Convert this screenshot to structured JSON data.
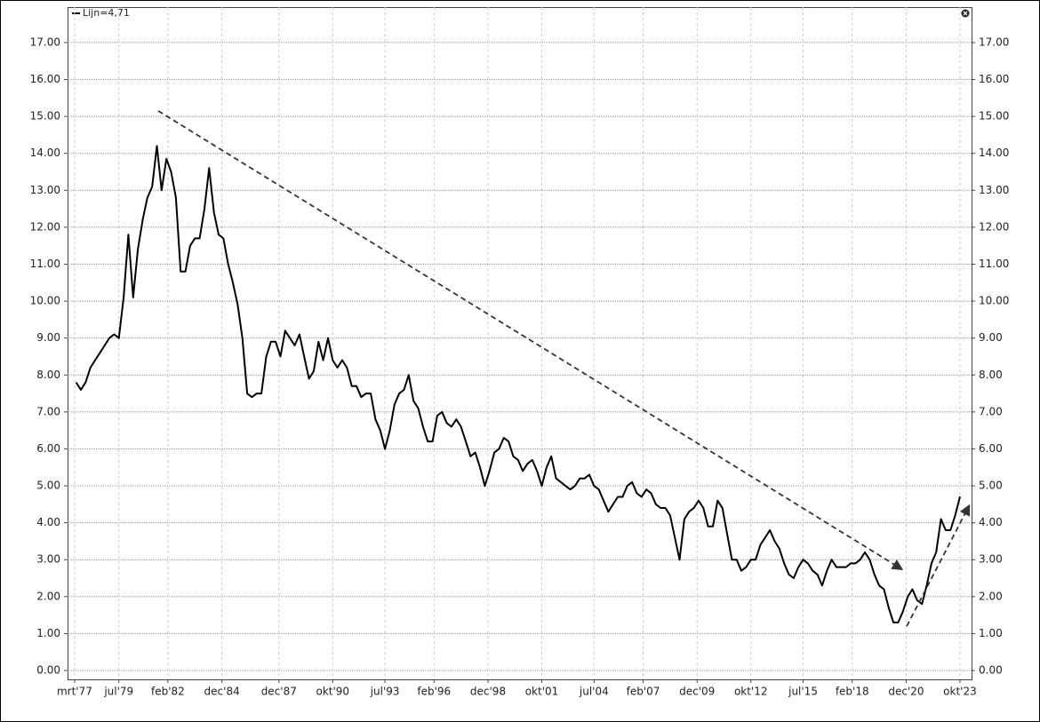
{
  "chart_data": {
    "type": "line",
    "x": [
      1977.25,
      1977.5,
      1977.75,
      1978,
      1978.25,
      1978.5,
      1978.75,
      1979,
      1979.25,
      1979.5,
      1979.75,
      1980,
      1980.25,
      1980.5,
      1980.75,
      1981,
      1981.25,
      1981.5,
      1981.75,
      1982,
      1982.25,
      1982.5,
      1982.75,
      1983,
      1983.25,
      1983.5,
      1983.75,
      1984,
      1984.25,
      1984.5,
      1984.75,
      1985,
      1985.25,
      1985.5,
      1985.75,
      1986,
      1986.25,
      1986.5,
      1986.75,
      1987,
      1987.25,
      1987.5,
      1987.75,
      1988,
      1988.25,
      1988.5,
      1988.75,
      1989,
      1989.25,
      1989.5,
      1989.75,
      1990,
      1990.25,
      1990.5,
      1990.75,
      1991,
      1991.25,
      1991.5,
      1991.75,
      1992,
      1992.25,
      1992.5,
      1992.75,
      1993,
      1993.25,
      1993.5,
      1993.75,
      1994,
      1994.25,
      1994.5,
      1994.75,
      1995,
      1995.25,
      1995.5,
      1995.75,
      1996,
      1996.25,
      1996.5,
      1996.75,
      1997,
      1997.25,
      1997.5,
      1997.75,
      1998,
      1998.25,
      1998.5,
      1998.75,
      1999,
      1999.25,
      1999.5,
      1999.75,
      2000,
      2000.25,
      2000.5,
      2000.75,
      2001,
      2001.25,
      2001.5,
      2001.75,
      2002,
      2002.25,
      2002.5,
      2002.75,
      2003,
      2003.25,
      2003.5,
      2003.75,
      2004,
      2004.25,
      2004.5,
      2004.75,
      2005,
      2005.25,
      2005.5,
      2005.75,
      2006,
      2006.25,
      2006.5,
      2006.75,
      2007,
      2007.25,
      2007.5,
      2007.75,
      2008,
      2008.25,
      2008.5,
      2008.75,
      2009,
      2009.25,
      2009.5,
      2009.75,
      2010,
      2010.25,
      2010.5,
      2010.75,
      2011,
      2011.25,
      2011.5,
      2011.75,
      2012,
      2012.25,
      2012.5,
      2012.75,
      2013,
      2013.25,
      2013.5,
      2013.75,
      2014,
      2014.25,
      2014.5,
      2014.75,
      2015,
      2015.25,
      2015.5,
      2015.75,
      2016,
      2016.25,
      2016.5,
      2016.75,
      2017,
      2017.25,
      2017.5,
      2017.75,
      2018,
      2018.25,
      2018.5,
      2018.75,
      2019,
      2019.25,
      2019.5,
      2019.75,
      2020,
      2020.25,
      2020.5,
      2020.75,
      2021,
      2021.25,
      2021.5,
      2021.75,
      2022,
      2022.25,
      2022.5,
      2022.75,
      2023,
      2023.25,
      2023.5,
      2023.75
    ],
    "series": [
      {
        "name": "Lijn=4,71",
        "color": "#000000",
        "values": [
          7.8,
          7.6,
          7.8,
          8.2,
          8.4,
          8.6,
          8.8,
          9.0,
          9.1,
          9.0,
          10.1,
          11.8,
          10.1,
          11.4,
          12.2,
          12.8,
          13.1,
          14.2,
          13.0,
          13.85,
          13.5,
          12.8,
          10.8,
          10.8,
          11.5,
          11.7,
          11.7,
          12.5,
          13.6,
          12.4,
          11.8,
          11.7,
          11.0,
          10.5,
          9.9,
          9.0,
          7.5,
          7.4,
          7.5,
          7.5,
          8.5,
          8.9,
          8.9,
          8.5,
          9.2,
          9.0,
          8.8,
          9.1,
          8.5,
          7.9,
          8.1,
          8.9,
          8.4,
          9.0,
          8.4,
          8.2,
          8.4,
          8.2,
          7.7,
          7.7,
          7.4,
          7.5,
          7.5,
          6.8,
          6.5,
          6.0,
          6.5,
          7.2,
          7.5,
          7.6,
          8.0,
          7.3,
          7.1,
          6.6,
          6.2,
          6.2,
          6.9,
          7.0,
          6.7,
          6.6,
          6.8,
          6.6,
          6.2,
          5.8,
          5.9,
          5.5,
          5.0,
          5.4,
          5.9,
          6.0,
          6.3,
          6.2,
          5.8,
          5.7,
          5.4,
          5.6,
          5.7,
          5.4,
          5.0,
          5.5,
          5.8,
          5.2,
          5.1,
          5.0,
          4.9,
          5.0,
          5.2,
          5.2,
          5.3,
          5.0,
          4.9,
          4.6,
          4.3,
          4.5,
          4.7,
          4.7,
          5.0,
          5.1,
          4.8,
          4.7,
          4.9,
          4.8,
          4.5,
          4.4,
          4.4,
          4.2,
          3.6,
          3.0,
          4.1,
          4.3,
          4.4,
          4.6,
          4.4,
          3.9,
          3.9,
          4.6,
          4.4,
          3.7,
          3.0,
          3.0,
          2.7,
          2.8,
          3.0,
          3.0,
          3.4,
          3.6,
          3.8,
          3.5,
          3.3,
          2.9,
          2.6,
          2.5,
          2.8,
          3.0,
          2.9,
          2.7,
          2.6,
          2.3,
          2.7,
          3.0,
          2.8,
          2.8,
          2.8,
          2.9,
          2.9,
          3.0,
          3.2,
          3.0,
          2.6,
          2.3,
          2.2,
          1.7,
          1.3,
          1.3,
          1.6,
          2.0,
          2.2,
          1.9,
          1.8,
          2.3,
          2.9,
          3.2,
          4.1,
          3.8,
          3.8,
          4.2,
          4.71
        ]
      }
    ],
    "trendlines": [
      {
        "x": [
          1981.57,
          2020.67
        ],
        "y": [
          15.15,
          2.75
        ]
      },
      {
        "x": [
          2020.95,
          2024.22
        ],
        "y": [
          1.2,
          4.45
        ]
      }
    ],
    "xlim": [
      1976.8,
      2024.36
    ],
    "ylim": [
      -0.24,
      17.96
    ],
    "xticks": [
      {
        "value": 1977.17,
        "label": "mrt'77"
      },
      {
        "value": 1979.5,
        "label": "jul'79"
      },
      {
        "value": 1982.08,
        "label": "feb'82"
      },
      {
        "value": 1984.92,
        "label": "dec'84"
      },
      {
        "value": 1987.92,
        "label": "dec'87"
      },
      {
        "value": 1990.75,
        "label": "okt'90"
      },
      {
        "value": 1993.5,
        "label": "jul'93"
      },
      {
        "value": 1996.08,
        "label": "feb'96"
      },
      {
        "value": 1998.92,
        "label": "dec'98"
      },
      {
        "value": 2001.75,
        "label": "okt'01"
      },
      {
        "value": 2004.5,
        "label": "jul'04"
      },
      {
        "value": 2007.08,
        "label": "feb'07"
      },
      {
        "value": 2009.92,
        "label": "dec'09"
      },
      {
        "value": 2012.75,
        "label": "okt'12"
      },
      {
        "value": 2015.5,
        "label": "jul'15"
      },
      {
        "value": 2018.08,
        "label": "feb'18"
      },
      {
        "value": 2020.92,
        "label": "dec'20"
      },
      {
        "value": 2023.75,
        "label": "okt'23"
      }
    ],
    "yticks": [
      {
        "value": 0,
        "label": "0.00"
      },
      {
        "value": 1,
        "label": "1.00"
      },
      {
        "value": 2,
        "label": "2.00"
      },
      {
        "value": 3,
        "label": "3.00"
      },
      {
        "value": 4,
        "label": "4.00"
      },
      {
        "value": 5,
        "label": "5.00"
      },
      {
        "value": 6,
        "label": "6.00"
      },
      {
        "value": 7,
        "label": "7.00"
      },
      {
        "value": 8,
        "label": "8.00"
      },
      {
        "value": 9,
        "label": "9.00"
      },
      {
        "value": 10,
        "label": "10.00"
      },
      {
        "value": 11,
        "label": "11.00"
      },
      {
        "value": 12,
        "label": "12.00"
      },
      {
        "value": 13,
        "label": "13.00"
      },
      {
        "value": 14,
        "label": "14.00"
      },
      {
        "value": 15,
        "label": "15.00"
      },
      {
        "value": 16,
        "label": "16.00"
      },
      {
        "value": 17,
        "label": "17.00"
      }
    ],
    "grid": true
  }
}
